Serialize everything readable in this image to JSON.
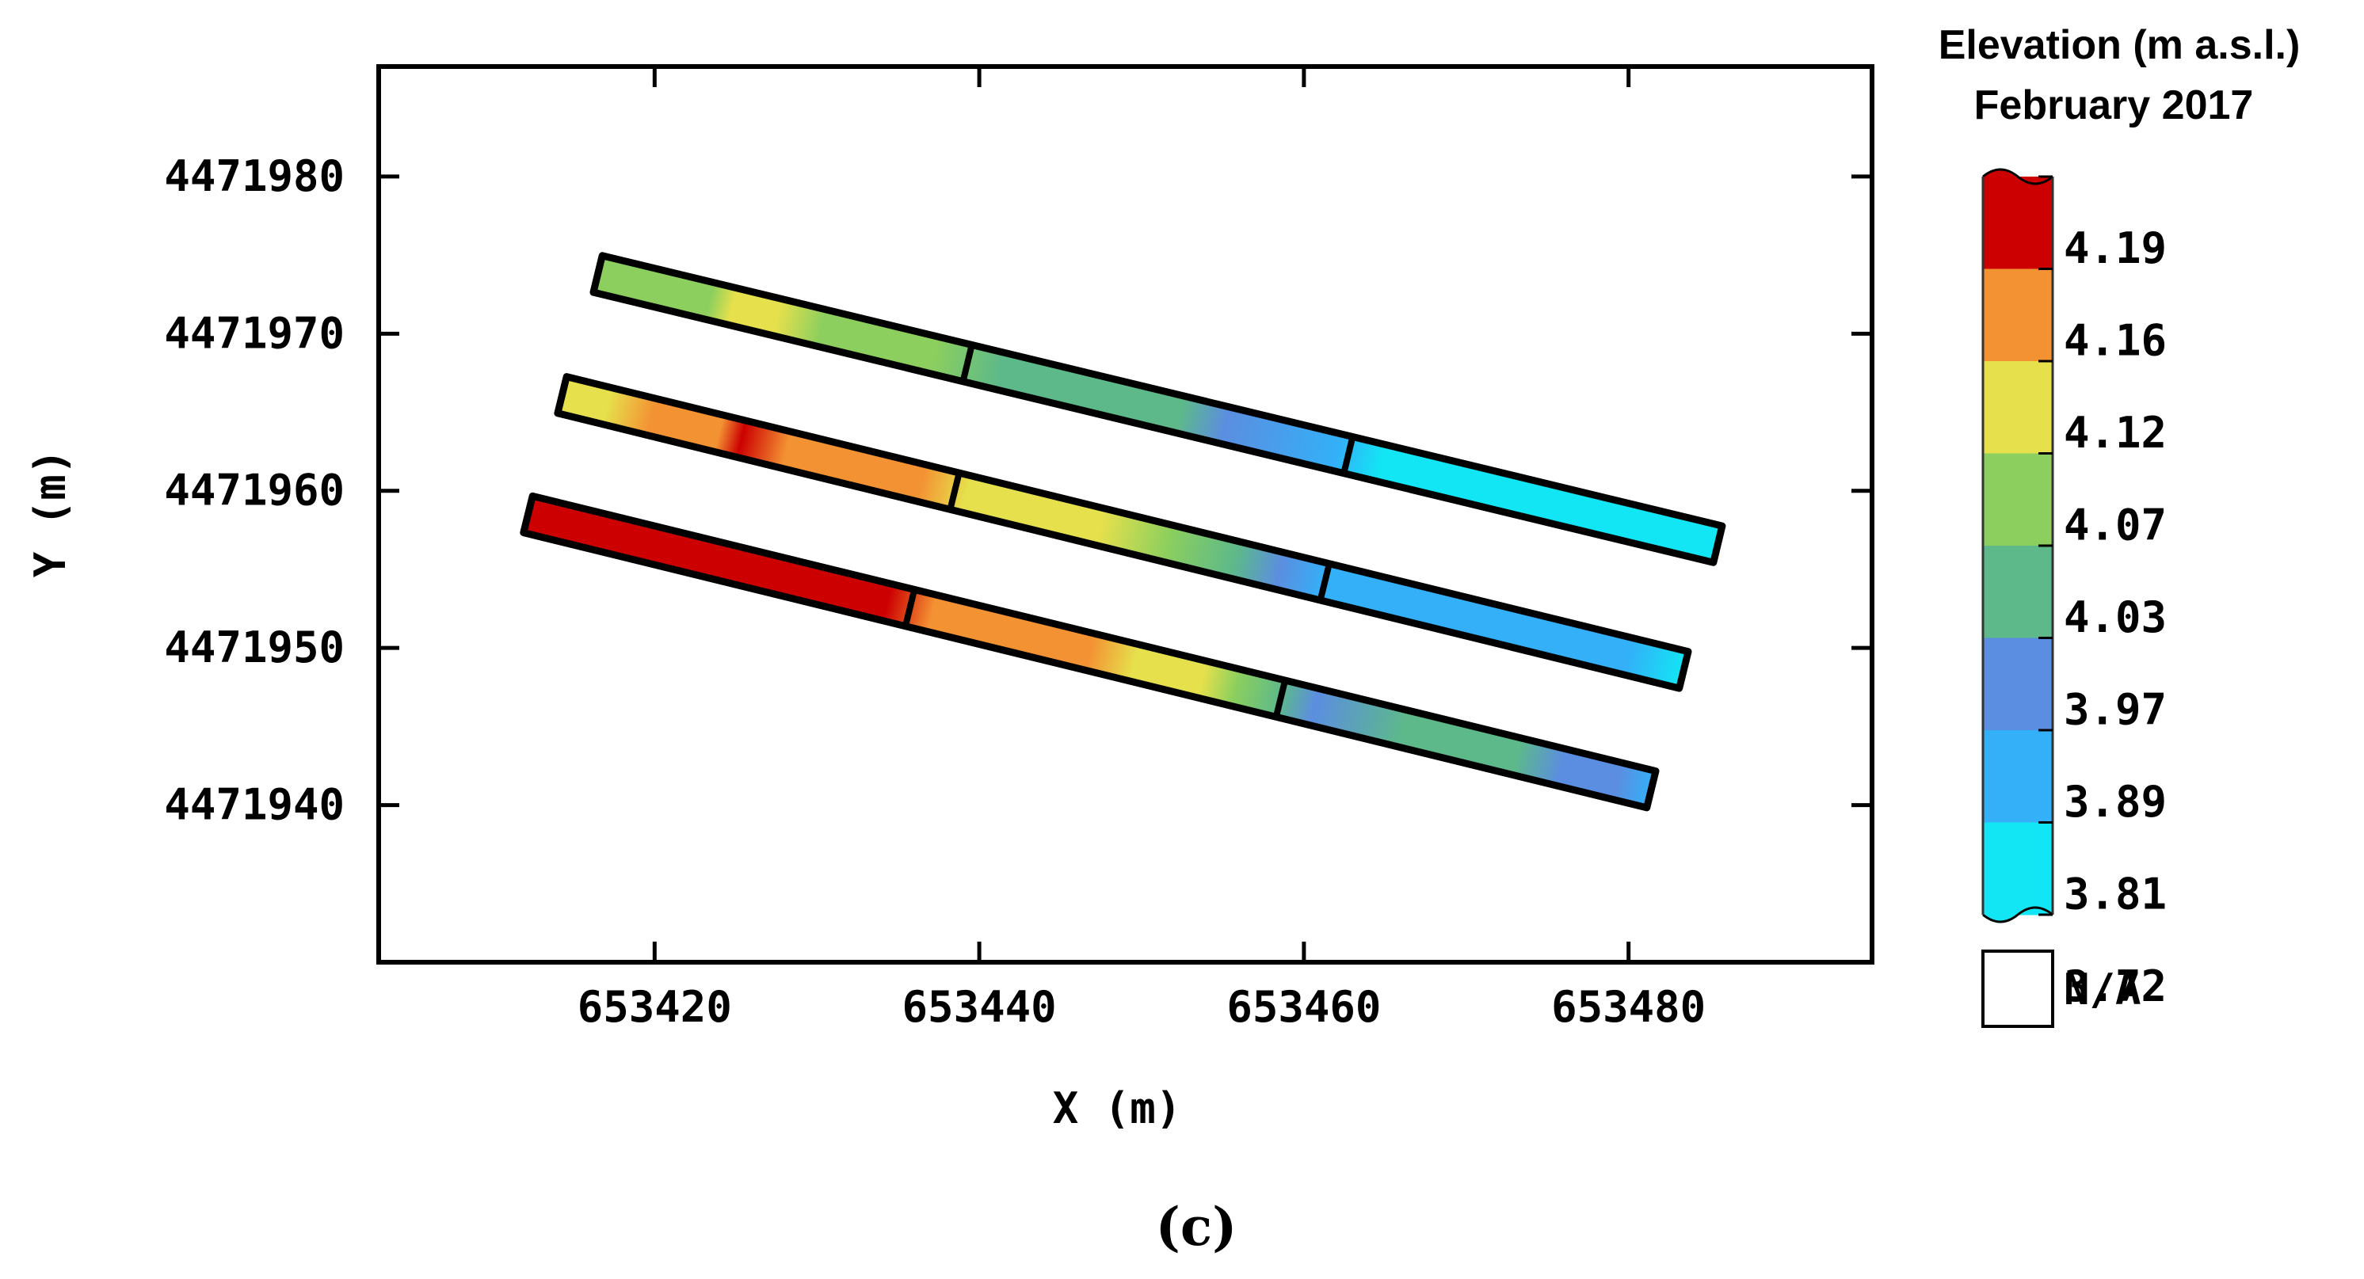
{
  "chart_data": {
    "type": "heatmap",
    "panel_label": "(c)",
    "xlabel": "X (m)",
    "ylabel": "Y (m)",
    "xlim": [
      653403,
      653495
    ],
    "ylim": [
      4471930,
      4471987
    ],
    "x_ticks": [
      653420,
      653440,
      653460,
      653480
    ],
    "y_ticks": [
      4471940,
      4471950,
      4471960,
      4471970,
      4471980
    ],
    "grid": false,
    "colorbar": {
      "title_line1": "Elevation (m a.s.l.)",
      "title_line2": "February 2017",
      "placement": "right",
      "labels": [
        "4.19",
        "4.16",
        "4.12",
        "4.07",
        "4.03",
        "3.97",
        "3.89",
        "3.81",
        "3.72"
      ],
      "colors": [
        "#cc0000",
        "#f39233",
        "#e6e04c",
        "#8ccf5e",
        "#5db98a",
        "#5b8ee0",
        "#33b0f8",
        "#12e6f4"
      ],
      "na_label": "N/A",
      "na_color": "#ffffff"
    },
    "strips": [
      {
        "name": "north",
        "start": [
          653416.5,
          4471973.8
        ],
        "end": [
          653485.5,
          4471956.6
        ],
        "width_m": 2.4,
        "dividers": [
          0.33,
          0.67
        ],
        "stops": [
          [
            0.0,
            "#8ccf5e"
          ],
          [
            0.1,
            "#8ccf5e"
          ],
          [
            0.12,
            "#e6e04c"
          ],
          [
            0.16,
            "#e6e04c"
          ],
          [
            0.2,
            "#8ccf5e"
          ],
          [
            0.3,
            "#8ccf5e"
          ],
          [
            0.36,
            "#5db98a"
          ],
          [
            0.52,
            "#5db98a"
          ],
          [
            0.56,
            "#5b8ee0"
          ],
          [
            0.66,
            "#33b0f8"
          ],
          [
            0.7,
            "#12e6f4"
          ],
          [
            1.0,
            "#12e6f4"
          ]
        ]
      },
      {
        "name": "middle",
        "start": [
          653414.3,
          4471966.1
        ],
        "end": [
          653483.4,
          4471948.6
        ],
        "width_m": 2.4,
        "dividers": [
          0.35,
          0.68
        ],
        "stops": [
          [
            0.0,
            "#e6e04c"
          ],
          [
            0.04,
            "#e6e04c"
          ],
          [
            0.08,
            "#f39233"
          ],
          [
            0.14,
            "#f39233"
          ],
          [
            0.16,
            "#cc0000"
          ],
          [
            0.2,
            "#f39233"
          ],
          [
            0.32,
            "#f39233"
          ],
          [
            0.36,
            "#e6e04c"
          ],
          [
            0.48,
            "#e6e04c"
          ],
          [
            0.54,
            "#8ccf5e"
          ],
          [
            0.6,
            "#5db98a"
          ],
          [
            0.64,
            "#5b8ee0"
          ],
          [
            0.68,
            "#33b0f8"
          ],
          [
            0.95,
            "#33b0f8"
          ],
          [
            1.0,
            "#12e6f4"
          ]
        ]
      },
      {
        "name": "south",
        "start": [
          653412.2,
          4471958.5
        ],
        "end": [
          653481.4,
          4471941.0
        ],
        "width_m": 2.4,
        "dividers": [
          0.34,
          0.67
        ],
        "stops": [
          [
            0.0,
            "#cc0000"
          ],
          [
            0.32,
            "#cc0000"
          ],
          [
            0.36,
            "#f39233"
          ],
          [
            0.5,
            "#f39233"
          ],
          [
            0.54,
            "#e6e04c"
          ],
          [
            0.6,
            "#e6e04c"
          ],
          [
            0.63,
            "#8ccf5e"
          ],
          [
            0.67,
            "#5db98a"
          ],
          [
            0.7,
            "#5b8ee0"
          ],
          [
            0.78,
            "#5db98a"
          ],
          [
            0.88,
            "#5db98a"
          ],
          [
            0.92,
            "#5b8ee0"
          ],
          [
            0.97,
            "#5b8ee0"
          ],
          [
            1.0,
            "#33b0f8"
          ]
        ]
      }
    ]
  }
}
